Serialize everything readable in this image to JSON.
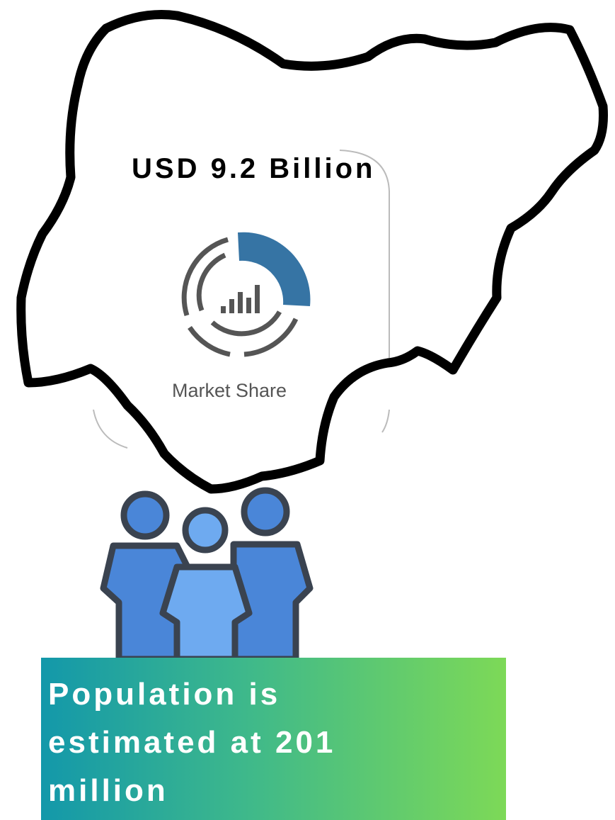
{
  "headline": "USD 9.2 Billion",
  "icon_label": "Market Share",
  "banner": "Population is estimated at 201 million"
}
